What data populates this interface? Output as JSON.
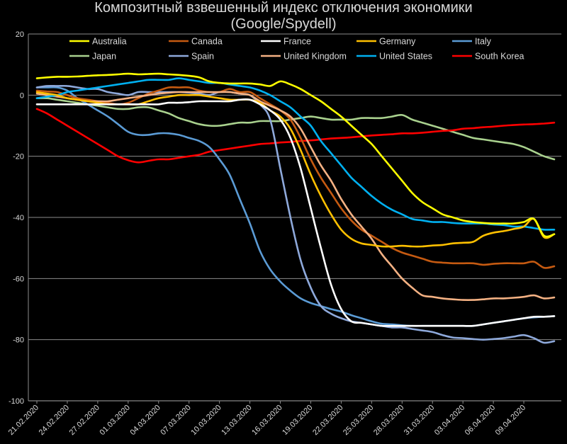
{
  "chart_data": {
    "type": "line",
    "title": "Композитный взвешенный индекс отключения экономики",
    "subtitle": "(Google/Spydell)",
    "xlabel": "",
    "ylabel": "",
    "ylim": [
      -100,
      20
    ],
    "yticks": [
      20,
      0,
      -20,
      -40,
      -60,
      -80,
      -100
    ],
    "grid": true,
    "legend_position": "top",
    "x_tick_labels": [
      "21.02.2020",
      "24.02.2020",
      "27.02.2020",
      "01.03.2020",
      "04.03.2020",
      "07.03.2020",
      "10.03.2020",
      "13.03.2020",
      "16.03.2020",
      "19.03.2020",
      "22.03.2020",
      "25.03.2020",
      "28.03.2020",
      "31.03.2020",
      "03.04.2020",
      "06.04.2020",
      "09.04.2020"
    ],
    "x_dates": [
      "21.02",
      "22.02",
      "23.02",
      "24.02",
      "25.02",
      "26.02",
      "27.02",
      "28.02",
      "29.02",
      "01.03",
      "02.03",
      "03.03",
      "04.03",
      "05.03",
      "06.03",
      "07.03",
      "08.03",
      "09.03",
      "10.03",
      "11.03",
      "12.03",
      "13.03",
      "14.03",
      "15.03",
      "16.03",
      "17.03",
      "18.03",
      "19.03",
      "20.03",
      "21.03",
      "22.03",
      "23.03",
      "24.03",
      "25.03",
      "26.03",
      "27.03",
      "28.03",
      "29.03",
      "30.03",
      "31.03",
      "01.04",
      "02.04",
      "03.04",
      "04.04",
      "05.04",
      "06.04",
      "07.04",
      "08.04",
      "09.04",
      "10.04",
      "11.04",
      "12.04"
    ],
    "series": [
      {
        "name": "Australia",
        "color": "#ffff00",
        "values": [
          5.5,
          5.8,
          6,
          6,
          6.1,
          6.3,
          6.5,
          6.6,
          6.8,
          7,
          6.8,
          6.9,
          7,
          6.8,
          6.6,
          6.3,
          5.8,
          4.5,
          4,
          3.8,
          3.8,
          3.8,
          3.5,
          3,
          4.5,
          3.5,
          2,
          0,
          -2,
          -4.5,
          -7,
          -10,
          -13,
          -16,
          -20,
          -24,
          -28,
          -32,
          -35,
          -37,
          -39,
          -40,
          -41,
          -41.5,
          -41.8,
          -42,
          -42,
          -42,
          -41.5,
          -40.5,
          -46,
          -45.5
        ]
      },
      {
        "name": "Canada",
        "color": "#c55a11",
        "values": [
          1.5,
          1.2,
          1,
          0,
          -1,
          -1.5,
          -2,
          -2.5,
          -3,
          -2.5,
          -1,
          0.5,
          1.5,
          2.5,
          2.5,
          2.5,
          1.5,
          1,
          1,
          2,
          1,
          1,
          -1,
          -3,
          -5,
          -8,
          -14,
          -21,
          -27,
          -32,
          -37,
          -41,
          -44,
          -46,
          -48,
          -50,
          -51.5,
          -52.5,
          -53.5,
          -54.5,
          -54.8,
          -55,
          -55,
          -55,
          -55.5,
          -55.2,
          -55,
          -55,
          -55,
          -54.5,
          -56.5,
          -56
        ]
      },
      {
        "name": "France",
        "color": "#ffffff",
        "values": [
          -3,
          -3,
          -3,
          -3,
          -3,
          -3,
          -3,
          -3,
          -3,
          -3,
          -3,
          -3,
          -3,
          -2.5,
          -2.5,
          -2.3,
          -2,
          -2,
          -2,
          -2,
          -1.5,
          -1.5,
          -3,
          -5,
          -8,
          -14,
          -24,
          -37,
          -50,
          -62,
          -70,
          -74,
          -74.5,
          -75,
          -75.5,
          -75.5,
          -75.5,
          -75.5,
          -75.5,
          -75.5,
          -75.5,
          -75.5,
          -75.5,
          -75.5,
          -75,
          -74.5,
          -74,
          -73.5,
          -73,
          -72.5,
          -72.5,
          -72.3
        ]
      },
      {
        "name": "Germany",
        "color": "#ffc000",
        "values": [
          1,
          0.5,
          0,
          -1,
          -1.5,
          -2,
          -2.5,
          -3,
          -3,
          -3,
          -3,
          -2,
          -1,
          -0.5,
          0,
          0,
          0,
          -0.5,
          -1,
          -1.5,
          -1.5,
          -1.5,
          -2.5,
          -5,
          -7,
          -11,
          -18,
          -26,
          -33,
          -39,
          -44,
          -47,
          -48.5,
          -49,
          -49.5,
          -49.5,
          -49.3,
          -49.5,
          -49.5,
          -49.2,
          -49,
          -48.5,
          -48.3,
          -48,
          -46,
          -45,
          -44.5,
          -43.8,
          -43,
          -40.5,
          -46.5,
          -45.5
        ]
      },
      {
        "name": "Italy",
        "color": "#5b9bd5",
        "values": [
          2.5,
          2.5,
          2.5,
          1.5,
          -1,
          -3,
          -5,
          -7,
          -9.5,
          -12,
          -13,
          -13,
          -12.5,
          -12.5,
          -13,
          -14,
          -15,
          -17,
          -21,
          -26,
          -34,
          -42,
          -51,
          -57,
          -61,
          -64,
          -66.5,
          -68,
          -69,
          -70,
          -70.8,
          -72,
          -73,
          -74,
          -74.8,
          -75,
          -75.3,
          -75.5,
          -75.5,
          -75.5,
          -75.5,
          -75.5,
          -75.5,
          -75.5,
          -75,
          -74.5,
          -74,
          -73.5,
          -73,
          -72.7,
          -72.5,
          -72.3
        ]
      },
      {
        "name": "Japan",
        "color": "#a9d18e",
        "values": [
          -1,
          -1,
          -1.5,
          -2,
          -2.5,
          -3,
          -3.5,
          -4,
          -4.5,
          -4.5,
          -4,
          -4,
          -5,
          -6,
          -7.5,
          -8.5,
          -9.5,
          -10,
          -10,
          -9.5,
          -9,
          -9,
          -8.5,
          -8.5,
          -8.5,
          -8,
          -7.5,
          -7,
          -7.5,
          -8,
          -8,
          -8,
          -7.5,
          -7.5,
          -7.5,
          -7,
          -6.5,
          -8,
          -9,
          -10,
          -11,
          -12,
          -13,
          -14,
          -14.5,
          -15,
          -15.5,
          -16,
          -17,
          -18.5,
          -20,
          -21
        ]
      },
      {
        "name": "Spain",
        "color": "#8ea9db",
        "values": [
          2.5,
          3,
          3,
          3,
          2.5,
          2,
          2,
          1,
          0.5,
          0,
          1,
          1,
          1,
          1,
          1,
          0.8,
          0.5,
          0,
          1,
          1,
          0.5,
          0,
          -3,
          -8,
          -24,
          -40,
          -54,
          -63,
          -69,
          -71.5,
          -73,
          -74,
          -74.5,
          -75,
          -75.5,
          -76,
          -76,
          -76.5,
          -77,
          -77.5,
          -78.5,
          -79.3,
          -79.5,
          -79.8,
          -80,
          -79.8,
          -79.5,
          -79,
          -78.5,
          -79.5,
          -81,
          -80.5
        ]
      },
      {
        "name": "United Kingdom",
        "color": "#f4b183",
        "values": [
          0.5,
          0,
          -0.5,
          -1,
          -1.5,
          -2,
          -2,
          -2,
          -1.5,
          -1,
          -0.5,
          0,
          0.5,
          0.8,
          1,
          1,
          1,
          1,
          1,
          1,
          0.5,
          0,
          -2,
          -3.5,
          -5,
          -7,
          -11,
          -17,
          -23,
          -28,
          -34,
          -39,
          -43,
          -47,
          -52,
          -56,
          -60,
          -63,
          -65.5,
          -66,
          -66.5,
          -66.8,
          -67,
          -67,
          -66.8,
          -66.5,
          -66.5,
          -66.3,
          -66,
          -65.5,
          -66.5,
          -66.2
        ]
      },
      {
        "name": "United States",
        "color": "#00b0f0",
        "values": [
          -1,
          -0.5,
          0,
          1,
          1.5,
          2,
          2.5,
          3,
          3.5,
          4,
          4.5,
          5,
          5,
          5,
          5.5,
          5,
          4.5,
          4,
          4,
          3.5,
          3,
          2.5,
          1.5,
          0,
          -2,
          -4,
          -7,
          -10,
          -15,
          -19,
          -23,
          -27,
          -30,
          -33,
          -35.5,
          -37.5,
          -39,
          -40.5,
          -41,
          -41.5,
          -41.5,
          -41.8,
          -42,
          -42,
          -42,
          -42.3,
          -42.5,
          -43,
          -43,
          -43.5,
          -44,
          -44
        ]
      },
      {
        "name": "South Korea",
        "color": "#ff0000",
        "values": [
          -4.5,
          -6,
          -8,
          -10,
          -12,
          -14,
          -16,
          -18,
          -20,
          -21.3,
          -22,
          -21.5,
          -21,
          -21,
          -20.5,
          -20,
          -19.5,
          -18.5,
          -18,
          -17.5,
          -17,
          -16.5,
          -16,
          -15.8,
          -15.5,
          -15.3,
          -15,
          -14.8,
          -14.5,
          -14.2,
          -14,
          -13.8,
          -13.5,
          -13.2,
          -13,
          -12.8,
          -12.5,
          -12.5,
          -12.3,
          -12,
          -11.7,
          -11.5,
          -11,
          -10.8,
          -10.5,
          -10.3,
          -10,
          -9.8,
          -9.6,
          -9.5,
          -9.3,
          -9
        ]
      }
    ]
  }
}
